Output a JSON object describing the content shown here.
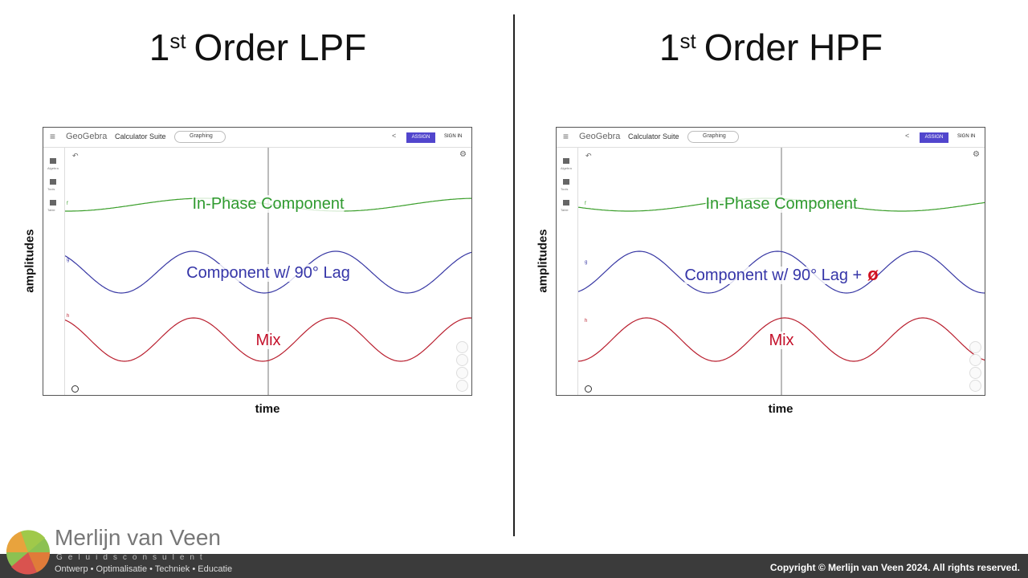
{
  "panels": [
    {
      "title": {
        "number": "1",
        "suffix": "st",
        "text": "Order LPF"
      },
      "app": {
        "brand": "GeoGebra",
        "suite": "Calculator Suite",
        "mode": "Graphing",
        "assign": "ASSIGN",
        "sign_in": "SIGN IN",
        "sidebar": [
          "Algebra",
          "Tools",
          "Table"
        ]
      },
      "curves": [
        {
          "label": "f",
          "annotation": "In-Phase Component"
        },
        {
          "label": "g",
          "annotation": "Component w/ 90° Lag"
        },
        {
          "label": "h",
          "annotation": "Mix"
        }
      ],
      "y_label": "amplitudes",
      "x_label": "time"
    },
    {
      "title": {
        "number": "1",
        "suffix": "st",
        "text": "Order HPF"
      },
      "app": {
        "brand": "GeoGebra",
        "suite": "Calculator Suite",
        "mode": "Graphing",
        "assign": "ASSIGN",
        "sign_in": "SIGN IN",
        "sidebar": [
          "Algebra",
          "Tools",
          "Table"
        ]
      },
      "curves": [
        {
          "label": "f",
          "annotation": "In-Phase Component"
        },
        {
          "label": "g",
          "annotation": "Component w/ 90° Lag +",
          "phase": "ø"
        },
        {
          "label": "h",
          "annotation": "Mix"
        }
      ],
      "y_label": "amplitudes",
      "x_label": "time"
    }
  ],
  "footer": {
    "name": "Merlijn van Veen",
    "tagline": "Geluidsconsulent",
    "services": "Ontwerp • Optimalisatie • Techniek • Educatie",
    "copyright": "Copyright © Merlijn van Veen 2024. All rights reserved."
  }
}
